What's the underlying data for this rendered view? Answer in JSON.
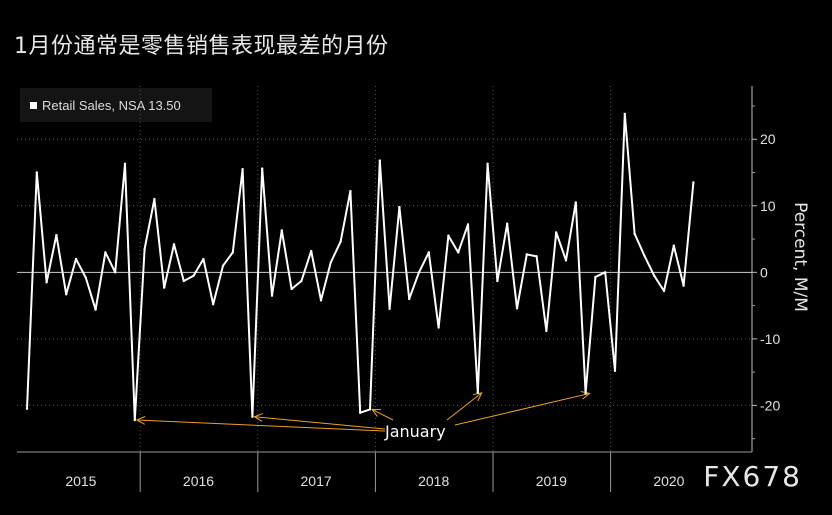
{
  "title": "1月份通常是零售销售表现最差的月份",
  "watermark": "FX678",
  "chart_data": {
    "type": "line",
    "legend": [
      {
        "label": "Retail Sales, NSA 13.50",
        "color": "#ffffff"
      }
    ],
    "legend_placement": "top-left",
    "ylabel": "Percent, M/M",
    "ylim": [
      -27,
      28
    ],
    "yticks": [
      -20,
      -10,
      0,
      10,
      20
    ],
    "grid": true,
    "color": "#ffffff",
    "annotation": {
      "text": "January",
      "color": "#f0a020",
      "targets_x": [
        "2016-01",
        "2017-01",
        "2018-01",
        "2019-01",
        "2020-01"
      ]
    },
    "xticks": [
      "2015",
      "2016",
      "2017",
      "2018",
      "2019",
      "2020"
    ],
    "series": [
      {
        "name": "Retail Sales, NSA 13.50",
        "points": [
          {
            "x": "2015-01",
            "y": -20.5
          },
          {
            "x": "2015-02",
            "y": 15.0
          },
          {
            "x": "2015-03",
            "y": -1.5
          },
          {
            "x": "2015-04",
            "y": 5.6
          },
          {
            "x": "2015-05",
            "y": -3.3
          },
          {
            "x": "2015-06",
            "y": 2.0
          },
          {
            "x": "2015-07",
            "y": -0.8
          },
          {
            "x": "2015-08",
            "y": -5.6
          },
          {
            "x": "2015-09",
            "y": 3.0
          },
          {
            "x": "2015-10",
            "y": 0.0
          },
          {
            "x": "2015-11",
            "y": 16.3
          },
          {
            "x": "2015-12",
            "y": -22.2
          },
          {
            "x": "2016-01",
            "y": 3.5
          },
          {
            "x": "2016-02",
            "y": 11.0
          },
          {
            "x": "2016-03",
            "y": -2.3
          },
          {
            "x": "2016-04",
            "y": 4.2
          },
          {
            "x": "2016-05",
            "y": -1.3
          },
          {
            "x": "2016-06",
            "y": -0.5
          },
          {
            "x": "2016-07",
            "y": 2.0
          },
          {
            "x": "2016-08",
            "y": -4.8
          },
          {
            "x": "2016-09",
            "y": 1.0
          },
          {
            "x": "2016-10",
            "y": 3.0
          },
          {
            "x": "2016-11",
            "y": 15.5
          },
          {
            "x": "2016-12",
            "y": -21.7
          },
          {
            "x": "2017-01",
            "y": 15.6
          },
          {
            "x": "2017-02",
            "y": -3.5
          },
          {
            "x": "2017-03",
            "y": 6.3
          },
          {
            "x": "2017-04",
            "y": -2.5
          },
          {
            "x": "2017-05",
            "y": -1.3
          },
          {
            "x": "2017-06",
            "y": 3.2
          },
          {
            "x": "2017-07",
            "y": -4.2
          },
          {
            "x": "2017-08",
            "y": 1.5
          },
          {
            "x": "2017-09",
            "y": 4.6
          },
          {
            "x": "2017-10",
            "y": 12.2
          },
          {
            "x": "2017-11",
            "y": -21.1
          },
          {
            "x": "2017-12",
            "y": -20.6
          },
          {
            "x": "2018-01",
            "y": 16.8
          },
          {
            "x": "2018-02",
            "y": -5.5
          },
          {
            "x": "2018-03",
            "y": 9.8
          },
          {
            "x": "2018-04",
            "y": -4.0
          },
          {
            "x": "2018-05",
            "y": 0.0
          },
          {
            "x": "2018-06",
            "y": 3.0
          },
          {
            "x": "2018-07",
            "y": -8.3
          },
          {
            "x": "2018-08",
            "y": 5.5
          },
          {
            "x": "2018-09",
            "y": 3.0
          },
          {
            "x": "2018-10",
            "y": 7.2
          },
          {
            "x": "2018-11",
            "y": -18.1
          },
          {
            "x": "2018-12",
            "y": 16.3
          },
          {
            "x": "2019-01",
            "y": -1.3
          },
          {
            "x": "2019-02",
            "y": 7.3
          },
          {
            "x": "2019-03",
            "y": -5.4
          },
          {
            "x": "2019-04",
            "y": 2.7
          },
          {
            "x": "2019-05",
            "y": 2.4
          },
          {
            "x": "2019-06",
            "y": -8.8
          },
          {
            "x": "2019-07",
            "y": 6.0
          },
          {
            "x": "2019-08",
            "y": 1.8
          },
          {
            "x": "2019-09",
            "y": 10.5
          },
          {
            "x": "2019-10",
            "y": -18.2
          },
          {
            "x": "2019-11",
            "y": -0.7
          },
          {
            "x": "2019-12",
            "y": 0.0
          },
          {
            "x": "2020-01",
            "y": -14.8
          },
          {
            "x": "2020-02",
            "y": 23.8
          },
          {
            "x": "2020-03",
            "y": 5.8
          },
          {
            "x": "2020-04",
            "y": 2.5
          },
          {
            "x": "2020-05",
            "y": -0.5
          },
          {
            "x": "2020-06",
            "y": -2.8
          },
          {
            "x": "2020-07",
            "y": 4.0
          },
          {
            "x": "2020-08",
            "y": -2.0
          },
          {
            "x": "2020-09",
            "y": 13.5
          }
        ]
      }
    ]
  }
}
